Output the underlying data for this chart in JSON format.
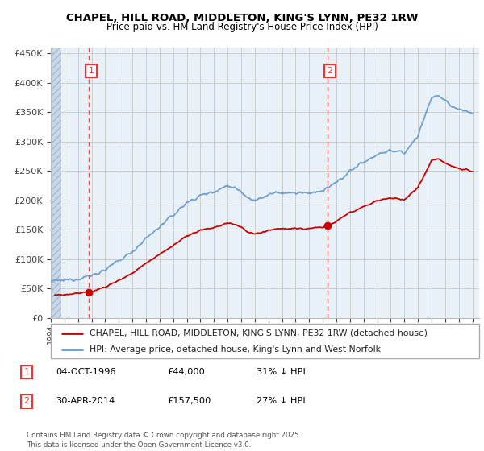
{
  "title": "CHAPEL, HILL ROAD, MIDDLETON, KING'S LYNN, PE32 1RW",
  "subtitle": "Price paid vs. HM Land Registry's House Price Index (HPI)",
  "ylabel_ticks": [
    "£0",
    "£50K",
    "£100K",
    "£150K",
    "£200K",
    "£250K",
    "£300K",
    "£350K",
    "£400K",
    "£450K"
  ],
  "ytick_values": [
    0,
    50000,
    100000,
    150000,
    200000,
    250000,
    300000,
    350000,
    400000,
    450000
  ],
  "ylim": [
    0,
    460000
  ],
  "xlim_start": 1994.0,
  "xlim_end": 2025.5,
  "sale1_x": 1996.76,
  "sale1_y": 44000,
  "sale2_x": 2014.33,
  "sale2_y": 157500,
  "vline1_x": 1996.76,
  "vline2_x": 2014.33,
  "legend_line1": "CHAPEL, HILL ROAD, MIDDLETON, KING'S LYNN, PE32 1RW (detached house)",
  "legend_line2": "HPI: Average price, detached house, King's Lynn and West Norfolk",
  "note1_date": "04-OCT-1996",
  "note1_price": "£44,000",
  "note1_hpi": "31% ↓ HPI",
  "note2_date": "30-APR-2014",
  "note2_price": "£157,500",
  "note2_hpi": "27% ↓ HPI",
  "footer": "Contains HM Land Registry data © Crown copyright and database right 2025.\nThis data is licensed under the Open Government Licence v3.0.",
  "red_line_color": "#cc0000",
  "blue_line_color": "#6699cc",
  "vline_color": "#ee3333",
  "grid_color": "#cccccc",
  "bg_color": "#e8f0f8",
  "hatch_color": "#c8d8e8"
}
